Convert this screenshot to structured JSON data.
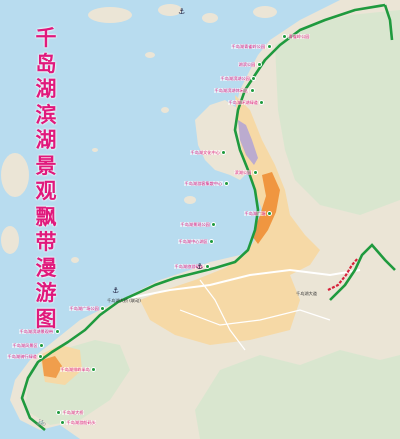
{
  "map": {
    "title_chars": [
      "千",
      "岛",
      "湖",
      "滨",
      "湖",
      "景",
      "观",
      "飘",
      "带",
      "漫",
      "游",
      "图"
    ],
    "colors": {
      "lake": "#b8dcef",
      "land": "#ebe5d6",
      "hills": "#d9e6cf",
      "town": "#f6d9a6",
      "greenway": "#1f9a3e",
      "poi_text": "#e0197c",
      "red_route": "#d8213b",
      "scenic_orange": "#ee8a2e",
      "scenic_purple": "#b0a2d6"
    },
    "pois": [
      {
        "text": "青雀岭公园",
        "side": "right"
      },
      {
        "text": "千岛湖青雀岭公园",
        "side": "right"
      },
      {
        "text": "湖滨公园",
        "side": "right"
      },
      {
        "text": "千岛湖滨湖公园",
        "side": "right"
      },
      {
        "text": "千岛湖滨湖休闲区",
        "side": "right"
      },
      {
        "text": "千岛湖环湖绿道",
        "side": "right"
      },
      {
        "text": "滨湖公园",
        "side": "right"
      },
      {
        "text": "千岛湖广场",
        "side": "right"
      },
      {
        "text": "千岛湖文化中心",
        "side": "left"
      },
      {
        "text": "千岛湖游客集散中心",
        "side": "left"
      },
      {
        "text": "千岛湖景观公园",
        "side": "left"
      },
      {
        "text": "千岛湖中心湖区",
        "side": "left"
      },
      {
        "text": "千岛湖旅游码头",
        "side": "left"
      },
      {
        "text": "千岛湖广场公园",
        "side": "left"
      },
      {
        "text": "千岛湖滨湖景观带",
        "side": "left"
      },
      {
        "text": "千岛湖风景区",
        "side": "left"
      },
      {
        "text": "千岛湖骑行绿道",
        "side": "left"
      },
      {
        "text": "千岛湖排岭半岛",
        "side": "left"
      },
      {
        "text": "千岛湖大桥",
        "side": "left"
      },
      {
        "text": "千岛湖游船码头",
        "side": "left"
      }
    ],
    "labels": [
      "千岛湖大桥 (联动)",
      "千岛湖大道"
    ],
    "icons": {
      "anchor": "⚓",
      "bike": "🚲"
    }
  }
}
